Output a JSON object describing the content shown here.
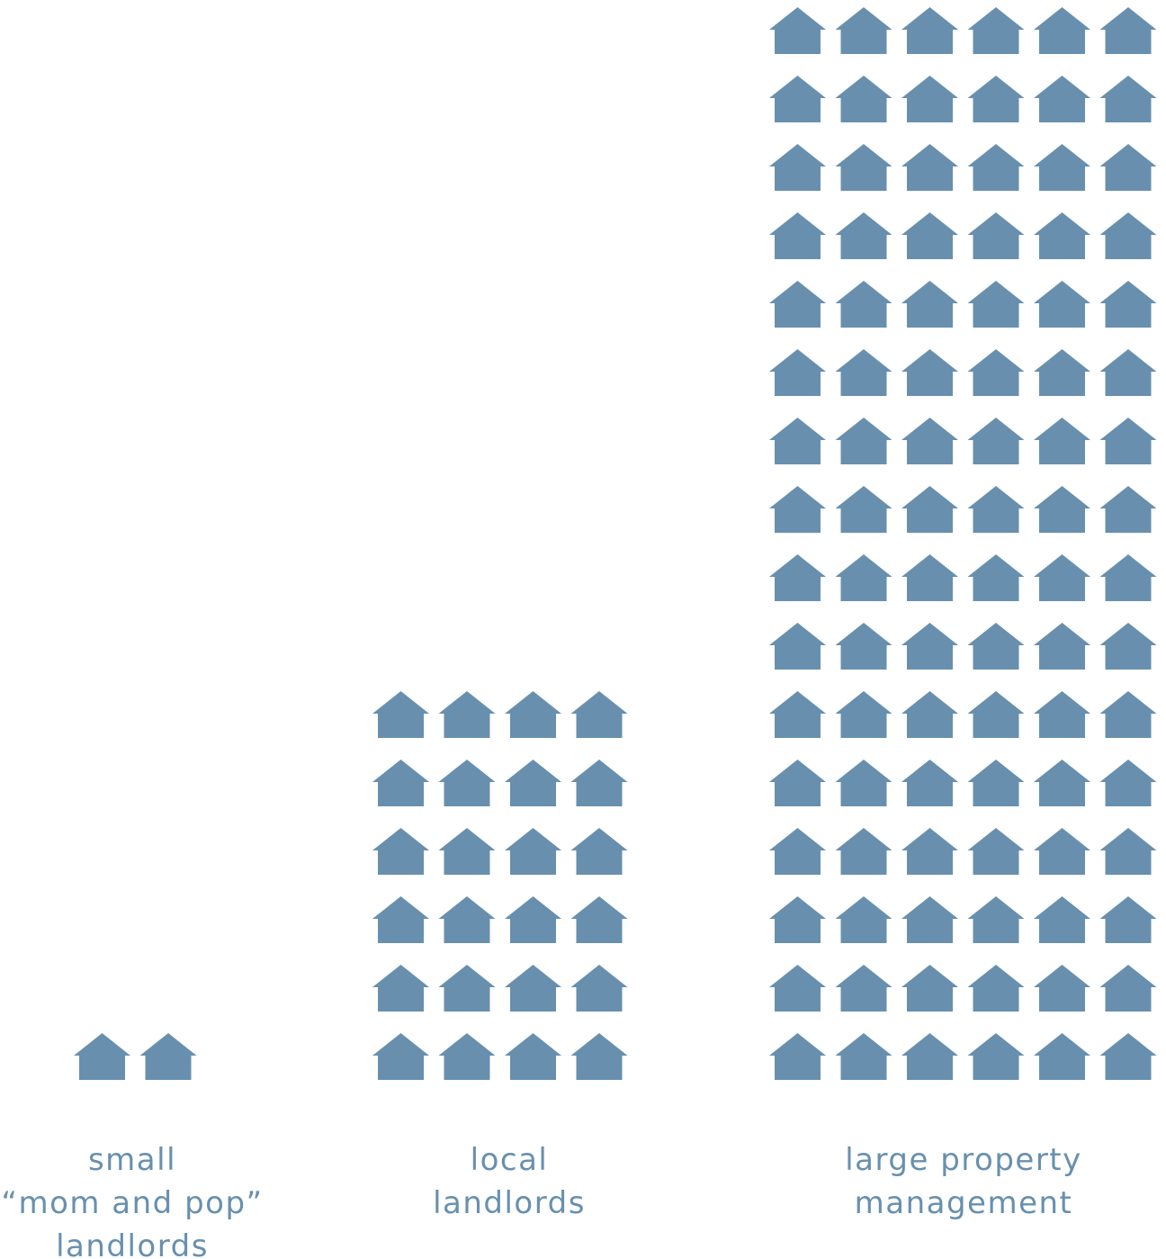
{
  "chart_data": {
    "type": "pictograph",
    "icon": "house-icon",
    "color": "#6890ae",
    "background": "#ffffff",
    "categories": [
      {
        "id": "small",
        "label_lines": [
          "small",
          "“mom and pop”",
          "landlords"
        ],
        "value": 2,
        "columns": 2
      },
      {
        "id": "local",
        "label_lines": [
          "local",
          "landlords"
        ],
        "value": 24,
        "columns": 4
      },
      {
        "id": "large",
        "label_lines": [
          "large property",
          "management"
        ],
        "value": 96,
        "columns": 6
      }
    ]
  }
}
